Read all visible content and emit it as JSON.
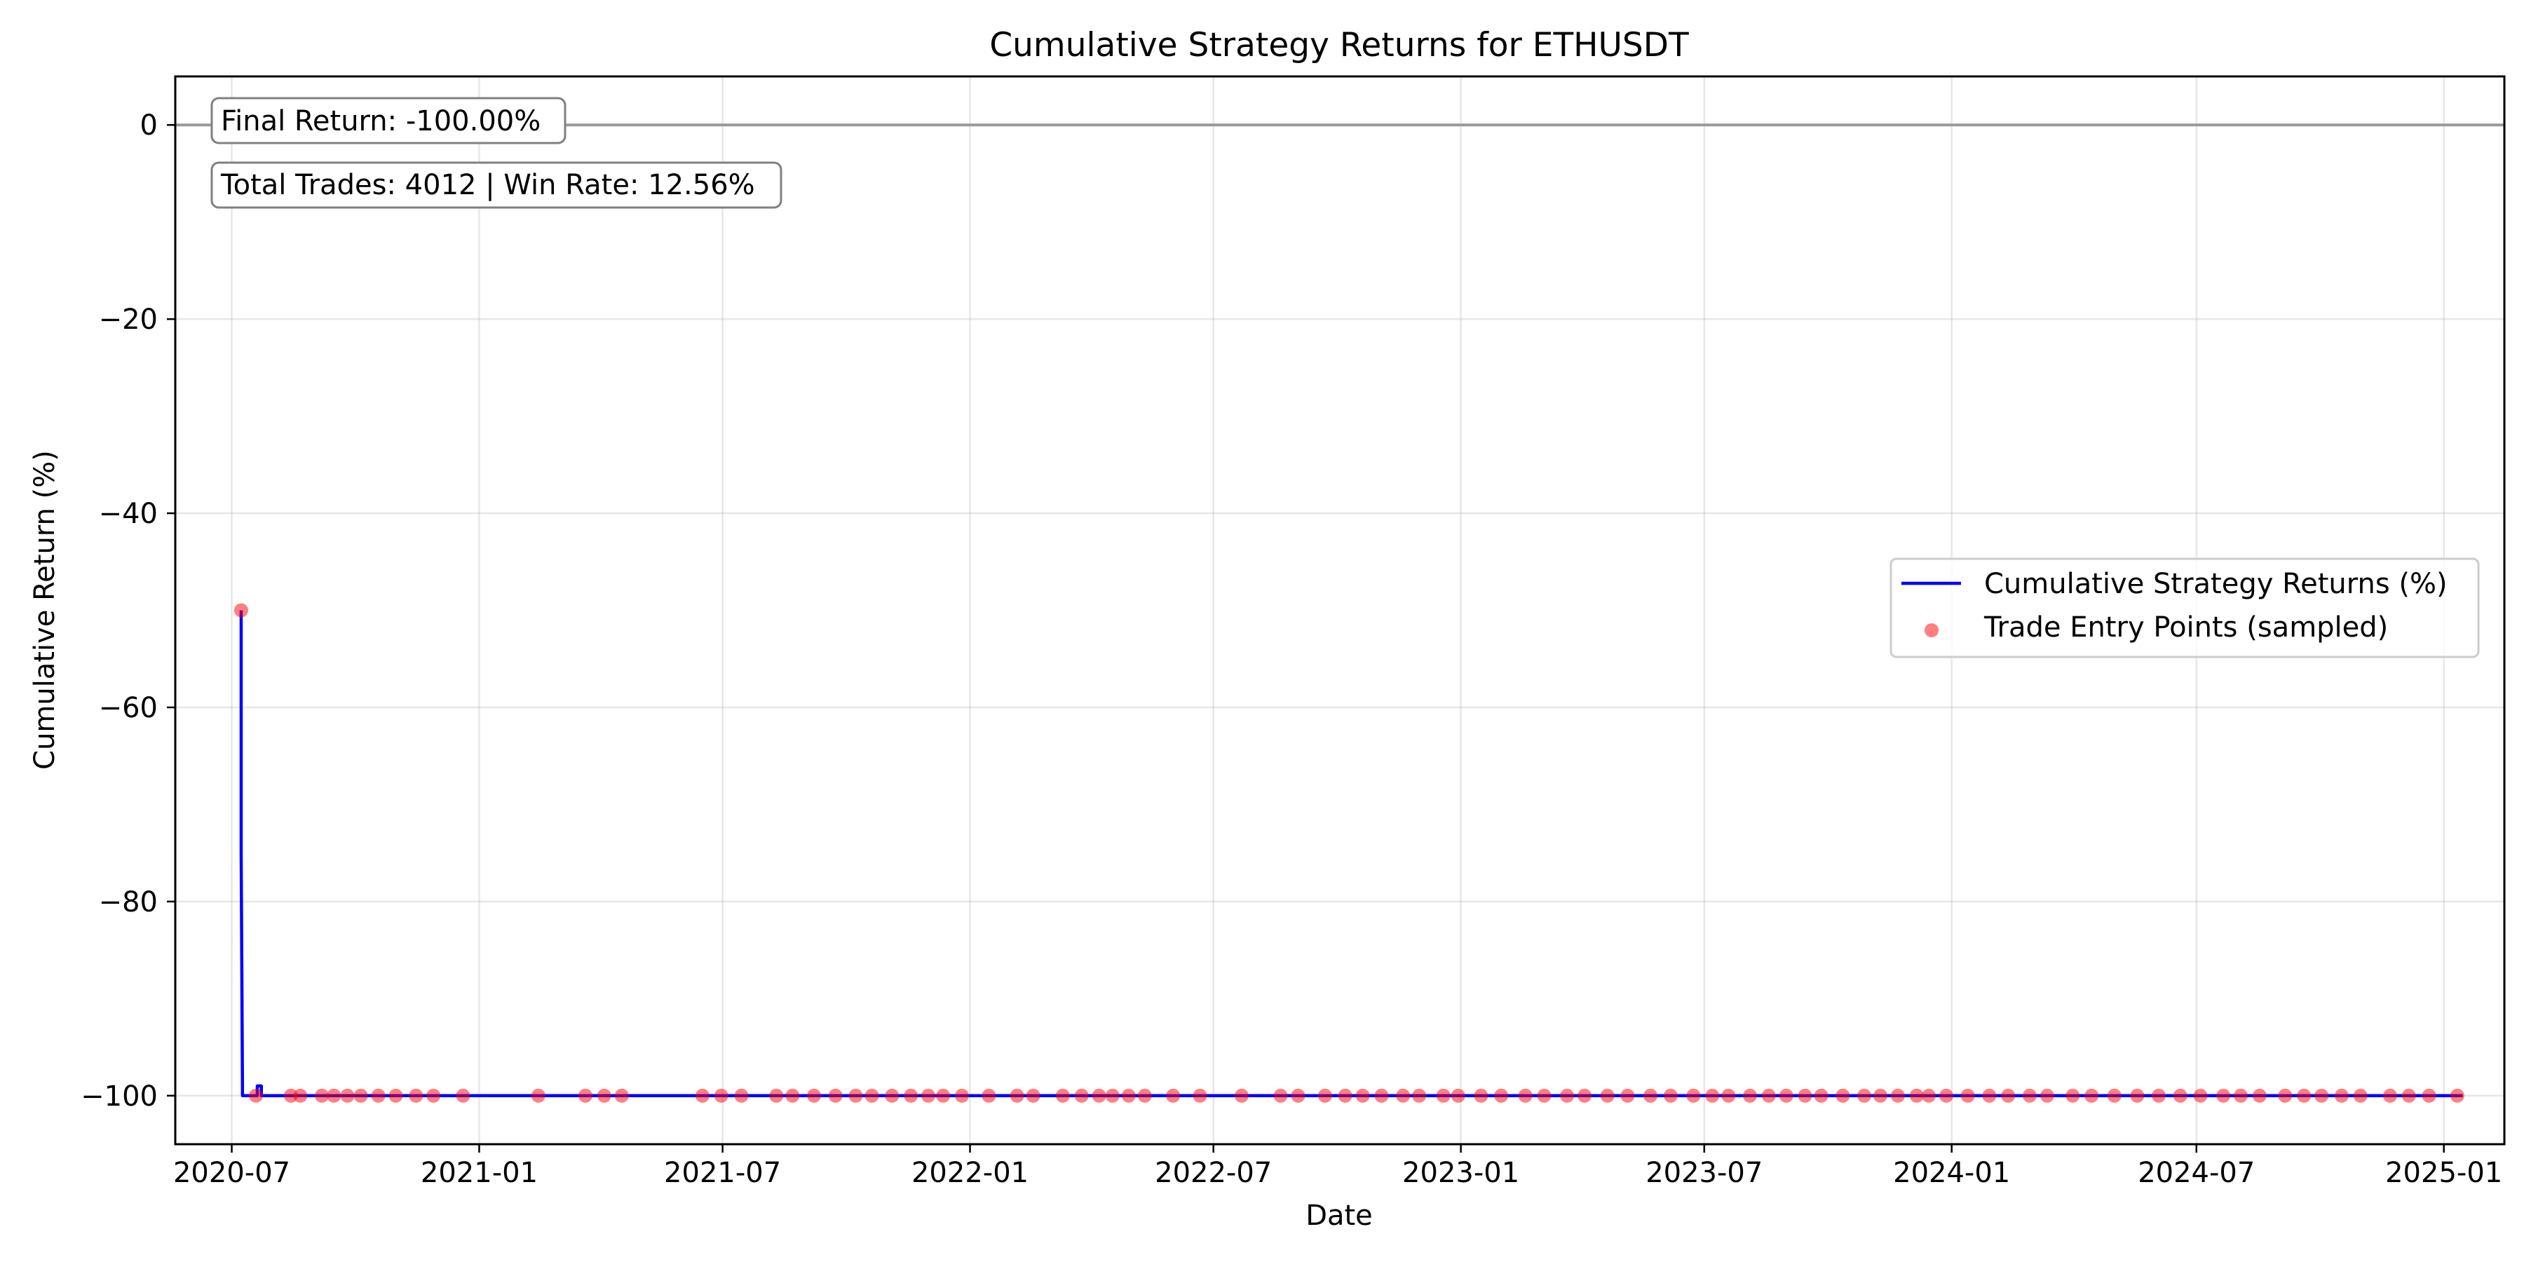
{
  "chart_data": {
    "type": "line",
    "title": "Cumulative Strategy Returns for ETHUSDT",
    "xlabel": "Date",
    "ylabel": "Cumulative Return (%)",
    "xlim": [
      "2020-05-20",
      "2025-02-15"
    ],
    "ylim": [
      -105,
      5
    ],
    "x_ticks": [
      "2020-07",
      "2021-01",
      "2021-07",
      "2022-01",
      "2022-07",
      "2023-01",
      "2023-07",
      "2024-01",
      "2024-07",
      "2025-01"
    ],
    "y_ticks": [
      0,
      -20,
      -40,
      -60,
      -80,
      -100
    ],
    "grid": true,
    "legend_position": "center-right",
    "reference_line": {
      "y": 0,
      "color": "#999999"
    },
    "annotations": [
      "Final Return: -100.00%",
      "Total Trades: 4012 | Win Rate: 12.56%"
    ],
    "series": [
      {
        "name": "Cumulative Strategy Returns (%)",
        "kind": "line",
        "color": "#0000ff",
        "points": [
          [
            "2020-07-08",
            -50
          ],
          [
            "2020-07-08",
            -75
          ],
          [
            "2020-07-09",
            -100
          ],
          [
            "2020-07-20",
            -100
          ],
          [
            "2020-07-20",
            -99
          ],
          [
            "2020-07-23",
            -99
          ],
          [
            "2020-07-23",
            -100
          ],
          [
            "2025-01-15",
            -100
          ]
        ]
      },
      {
        "name": "Trade Entry Points (sampled)",
        "kind": "scatter",
        "color": "#ff0000",
        "y_value": -100,
        "first_point": [
          "2020-07-08",
          -50
        ],
        "dates": [
          "2020-07-19",
          "2020-08-14",
          "2020-08-21",
          "2020-09-06",
          "2020-09-15",
          "2020-09-25",
          "2020-10-05",
          "2020-10-18",
          "2020-10-31",
          "2020-11-15",
          "2020-11-28",
          "2020-12-20",
          "2021-02-14",
          "2021-03-21",
          "2021-04-04",
          "2021-04-17",
          "2021-06-16",
          "2021-06-30",
          "2021-07-15",
          "2021-08-10",
          "2021-08-22",
          "2021-09-07",
          "2021-09-23",
          "2021-10-08",
          "2021-10-20",
          "2021-11-04",
          "2021-11-18",
          "2021-12-01",
          "2021-12-12",
          "2021-12-26",
          "2022-01-15",
          "2022-02-05",
          "2022-02-17",
          "2022-03-11",
          "2022-03-25",
          "2022-04-07",
          "2022-04-17",
          "2022-04-29",
          "2022-05-11",
          "2022-06-01",
          "2022-06-21",
          "2022-07-22",
          "2022-08-20",
          "2022-09-02",
          "2022-09-22",
          "2022-10-07",
          "2022-10-20",
          "2022-11-03",
          "2022-11-19",
          "2022-12-01",
          "2022-12-19",
          "2022-12-30",
          "2023-01-16",
          "2023-01-31",
          "2023-02-18",
          "2023-03-04",
          "2023-03-21",
          "2023-04-03",
          "2023-04-20",
          "2023-05-05",
          "2023-05-22",
          "2023-06-06",
          "2023-06-23",
          "2023-07-07",
          "2023-07-19",
          "2023-08-04",
          "2023-08-18",
          "2023-08-31",
          "2023-09-14",
          "2023-09-26",
          "2023-10-12",
          "2023-10-28",
          "2023-11-09",
          "2023-11-22",
          "2023-12-06",
          "2023-12-15",
          "2023-12-28",
          "2024-01-13",
          "2024-01-29",
          "2024-02-12",
          "2024-02-28",
          "2024-03-12",
          "2024-03-31",
          "2024-04-14",
          "2024-05-01",
          "2024-05-18",
          "2024-06-03",
          "2024-06-19",
          "2024-07-04",
          "2024-07-21",
          "2024-08-03",
          "2024-08-17",
          "2024-09-05",
          "2024-09-19",
          "2024-10-02",
          "2024-10-17",
          "2024-10-31",
          "2024-11-22",
          "2024-12-06",
          "2024-12-21",
          "2025-01-11"
        ]
      }
    ]
  }
}
